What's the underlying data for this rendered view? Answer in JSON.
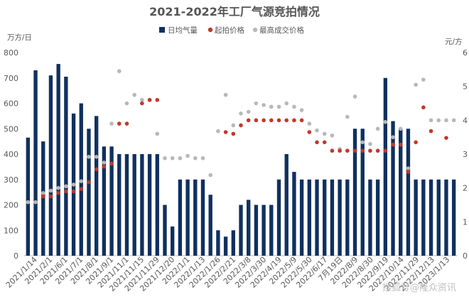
{
  "chart_data": {
    "type": "bar",
    "title": "2021-2022年工厂气源竞拍情况",
    "left_axis_unit": "万方/日",
    "right_axis_unit": "元/方",
    "left_ylim": [
      0,
      800
    ],
    "left_ticks": [
      0,
      100,
      200,
      300,
      400,
      500,
      600,
      700,
      800
    ],
    "right_ylim": [
      0,
      6
    ],
    "right_ticks": [
      0,
      1,
      2,
      3,
      4,
      5,
      6
    ],
    "grid": false,
    "legend_position": "top-center",
    "x_tick_labels": [
      "2021/1/14",
      "2021/2/1",
      "2021/6/1",
      "2021/7/1",
      "2021/8/1",
      "2021/9/1",
      "2021/11/1",
      "2021/11/15",
      "2021/11/29",
      "2021/12/20",
      "2022/1/1",
      "2022/1/13",
      "2022/1/26",
      "2022/2/21",
      "2022/3/8",
      "2022/3/30",
      "2022/4/19",
      "2022/5/9",
      "2022/5/30",
      "2022/6/17",
      "7月19日",
      "2022/8/9",
      "2022/8/30",
      "2022/9/19",
      "2022/10/14",
      "2022/11/29",
      "2022/12/13",
      "2023/1/13"
    ],
    "series": [
      {
        "name": "日均气量",
        "axis": "left",
        "kind": "bar",
        "values": [
          465,
          730,
          450,
          710,
          755,
          705,
          560,
          600,
          500,
          550,
          430,
          430,
          400,
          400,
          400,
          400,
          400,
          400,
          200,
          115,
          300,
          300,
          300,
          300,
          240,
          100,
          75,
          100,
          200,
          220,
          200,
          200,
          200,
          300,
          400,
          330,
          300,
          300,
          300,
          300,
          300,
          300,
          300,
          500,
          500,
          300,
          300,
          700,
          530,
          500,
          500,
          300,
          300,
          300,
          300,
          300,
          300
        ]
      },
      {
        "name": "起拍价格",
        "axis": "right",
        "kind": "dot",
        "values": [
          null,
          null,
          1.75,
          1.75,
          1.85,
          1.9,
          1.9,
          1.97,
          2.17,
          2.55,
          2.63,
          2.72,
          3.9,
          3.9,
          null,
          4.5,
          4.6,
          4.6,
          null,
          null,
          null,
          null,
          null,
          null,
          null,
          null,
          3.65,
          3.6,
          3.85,
          4.0,
          4.0,
          4.0,
          4.0,
          4.0,
          4.0,
          4.0,
          4.0,
          3.65,
          3.35,
          3.35,
          3.1,
          3.1,
          3.1,
          3.1,
          3.1,
          3.1,
          3.1,
          3.1,
          3.28,
          3.28,
          2.48,
          3.35,
          4.38,
          3.68,
          null,
          3.48,
          null
        ]
      },
      {
        "name": "最高成交价格",
        "axis": "right",
        "kind": "dot",
        "values": [
          1.58,
          1.58,
          1.85,
          1.92,
          2.0,
          2.05,
          2.1,
          2.2,
          2.92,
          2.92,
          2.75,
          3.9,
          5.45,
          4.5,
          4.75,
          4.6,
          4.6,
          3.6,
          2.88,
          2.88,
          2.88,
          2.95,
          2.88,
          2.88,
          2.38,
          3.68,
          4.75,
          3.85,
          4.2,
          4.25,
          4.5,
          4.45,
          4.4,
          4.4,
          4.5,
          4.4,
          4.3,
          3.9,
          3.7,
          3.6,
          3.55,
          3.15,
          4.1,
          4.7,
          3.35,
          3.3,
          3.75,
          3.95,
          3.5,
          3.75,
          2.58,
          5.05,
          5.2,
          4.0,
          4.0,
          4.0,
          4.0
        ]
      }
    ],
    "colors": {
      "bar": "#10305f",
      "start_price": "#c0392b",
      "max_price": "#b8b8b8"
    }
  },
  "watermark": "搜狐号@隆众资讯"
}
